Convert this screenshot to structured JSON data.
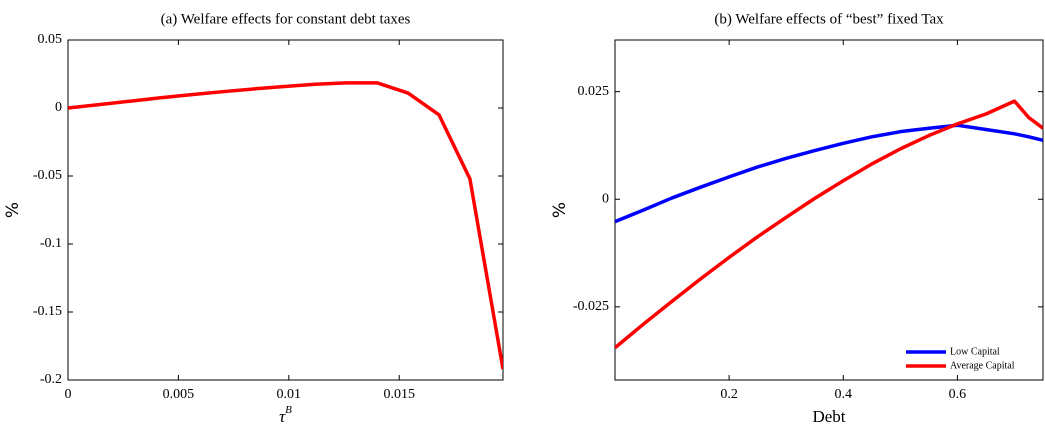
{
  "chart_data": [
    {
      "type": "line",
      "title": "(a) Welfare effects for constant debt taxes",
      "xlabel": {
        "text": "τ",
        "superscript": "B"
      },
      "ylabel": "%",
      "xlim": [
        0,
        0.0197
      ],
      "ylim": [
        -0.2,
        0.05
      ],
      "xticks": [
        0,
        0.005,
        0.01,
        0.015
      ],
      "yticks": [
        -0.2,
        -0.15,
        -0.1,
        -0.05,
        0,
        0.05
      ],
      "grid": false,
      "x": [
        0,
        0.0014,
        0.0028,
        0.0042,
        0.0056,
        0.007,
        0.0084,
        0.0098,
        0.0112,
        0.0126,
        0.014,
        0.0154,
        0.0168,
        0.0182,
        0.0197
      ],
      "series": [
        {
          "color": "#ff0000",
          "values": [
            0,
            0.0025,
            0.005,
            0.0075,
            0.0098,
            0.012,
            0.014,
            0.0158,
            0.0175,
            0.0185,
            0.0185,
            0.011,
            -0.005,
            -0.052,
            -0.192
          ]
        }
      ]
    },
    {
      "type": "line",
      "title": "(b) Welfare effects of “best” fixed Tax",
      "xlabel": {
        "text": "Debt"
      },
      "ylabel": "%",
      "xlim": [
        0,
        0.75
      ],
      "ylim": [
        -0.042,
        0.037
      ],
      "xticks": [
        0.2,
        0.4,
        0.6
      ],
      "yticks": [
        -0.025,
        0,
        0.025
      ],
      "grid": false,
      "legend": "lower right",
      "x": [
        0,
        0.05,
        0.1,
        0.15,
        0.2,
        0.25,
        0.3,
        0.35,
        0.4,
        0.45,
        0.5,
        0.55,
        0.6,
        0.65,
        0.7,
        0.725,
        0.75
      ],
      "series": [
        {
          "name": "Low Capital",
          "color": "#0000ff",
          "values": [
            -0.0052,
            -0.0025,
            0.0003,
            0.0028,
            0.0052,
            0.0075,
            0.0095,
            0.0113,
            0.013,
            0.0145,
            0.0157,
            0.0165,
            0.0172,
            0.0162,
            0.0152,
            0.0145,
            0.0137
          ]
        },
        {
          "name": "Average Capital",
          "color": "#ff0000",
          "values": [
            -0.0345,
            -0.029,
            -0.0237,
            -0.0185,
            -0.0135,
            -0.0087,
            -0.0042,
            0.0002,
            0.0043,
            0.0082,
            0.0117,
            0.0148,
            0.0175,
            0.0198,
            0.0228,
            0.019,
            0.0165
          ]
        }
      ]
    }
  ]
}
